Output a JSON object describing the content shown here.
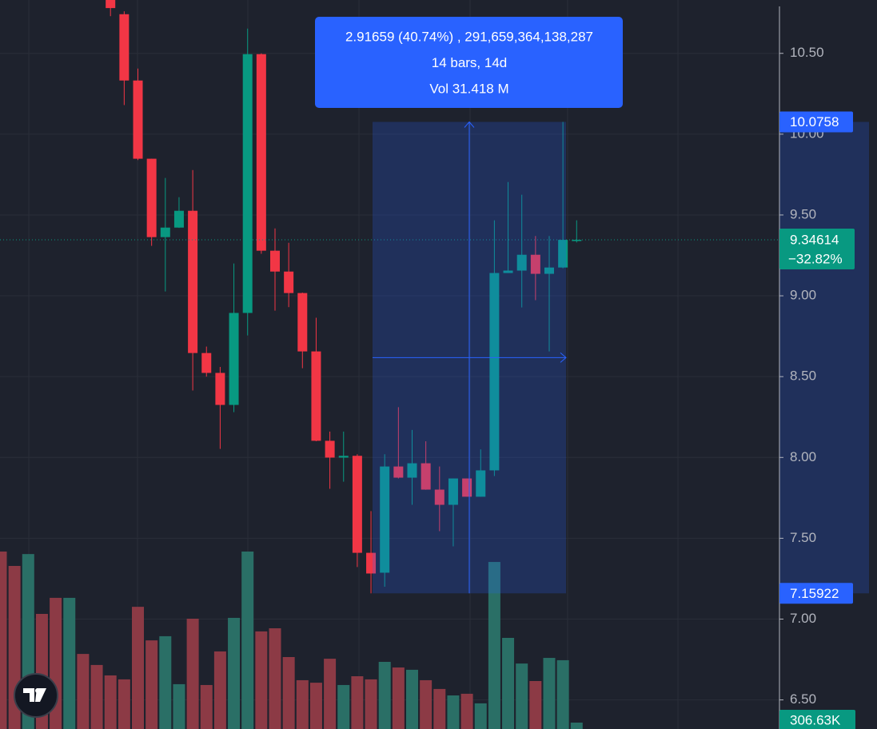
{
  "chart_data": {
    "type": "candlestick",
    "up_color": "#089981",
    "down_color": "#f23645",
    "open": [
      null,
      null,
      null,
      null,
      null,
      null,
      null,
      null,
      10.88,
      10.742,
      10.332,
      9.848,
      9.363,
      9.422,
      9.526,
      8.646,
      8.523,
      8.325,
      8.894,
      10.495,
      9.279,
      9.15,
      9.017,
      8.656,
      8.103,
      7.999,
      8.01,
      7.41,
      7.287,
      7.944,
      7.875,
      7.964,
      7.801,
      7.707,
      7.87,
      7.757,
      7.92,
      9.141,
      9.156,
      9.254,
      9.136,
      9.175,
      9.346
    ],
    "high": [
      null,
      null,
      null,
      null,
      null,
      null,
      null,
      null,
      10.9,
      10.76,
      10.406,
      9.848,
      9.729,
      9.61,
      9.778,
      8.686,
      8.56,
      9.2,
      10.653,
      10.5,
      9.417,
      9.328,
      9.02,
      8.864,
      8.16,
      8.16,
      8.02,
      7.668,
      8.02,
      8.311,
      8.17,
      8.1,
      7.944,
      7.87,
      7.87,
      8.05,
      9.467,
      9.704,
      9.625,
      9.37,
      9.37,
      10.0758,
      9.467
    ],
    "low": [
      null,
      null,
      null,
      null,
      null,
      null,
      null,
      null,
      10.73,
      10.18,
      9.84,
      9.309,
      9.027,
      9.42,
      8.414,
      8.5,
      8.053,
      8.28,
      8.755,
      9.26,
      8.908,
      8.93,
      8.552,
      8.1,
      7.806,
      7.85,
      7.322,
      7.15922,
      7.2,
      7.87,
      7.707,
      7.8,
      7.544,
      7.45,
      7.757,
      7.757,
      7.885,
      9.141,
      8.928,
      8.973,
      8.656,
      9.17,
      9.33
    ],
    "close": [
      null,
      null,
      null,
      null,
      null,
      null,
      null,
      null,
      10.78,
      10.332,
      9.848,
      9.363,
      9.422,
      9.526,
      8.646,
      8.523,
      8.325,
      8.894,
      10.495,
      9.279,
      9.15,
      9.017,
      8.656,
      8.103,
      7.999,
      8.01,
      7.41,
      7.282,
      7.944,
      7.875,
      7.964,
      7.801,
      7.707,
      7.87,
      7.757,
      7.92,
      9.141,
      9.156,
      9.254,
      9.136,
      9.175,
      9.346,
      9.34614
    ],
    "volume": {
      "values": [
        8510,
        7820,
        8390,
        5520,
        6290,
        6290,
        3600,
        3070,
        2570,
        2380,
        5860,
        4250,
        4450,
        2150,
        5290,
        2110,
        3720,
        5330,
        8510,
        4680,
        4830,
        3450,
        2340,
        2220,
        3370,
        2110,
        2530,
        2380,
        3220,
        2950,
        2840,
        2340,
        1920,
        1610,
        1690,
        1230,
        8010,
        4370,
        3140,
        2300,
        3410,
        3300,
        306.63
      ],
      "value_labels": [
        null,
        null,
        null,
        null,
        null,
        null,
        null,
        null,
        null,
        null,
        null,
        null,
        null,
        null,
        null,
        null,
        null,
        null,
        null,
        null,
        null,
        null,
        null,
        null,
        null,
        null,
        null,
        null,
        null,
        null,
        null,
        null,
        null,
        null,
        null,
        null,
        null,
        null,
        null,
        null,
        null,
        null,
        "306.63K"
      ],
      "colors": [
        "#8c3a45",
        "#8c3a45",
        "#2a6f66",
        "#8c3a45",
        "#8c3a45",
        "#2a6f66",
        "#8c3a45",
        "#8c3a45",
        "#8c3a45",
        "#8c3a45",
        "#8c3a45",
        "#8c3a45",
        "#2a6f66",
        "#2a6f66",
        "#8c3a45",
        "#8c3a45",
        "#8c3a45",
        "#2a6f66",
        "#2a6f66",
        "#8c3a45",
        "#8c3a45",
        "#8c3a45",
        "#8c3a45",
        "#8c3a45",
        "#8c3a45",
        "#2a6f66",
        "#8c3a45",
        "#8c3a45",
        "#2a6f66",
        "#8c3a45",
        "#2a6f66",
        "#8c3a45",
        "#8c3a45",
        "#2a6f66",
        "#8c3a45",
        "#2a6f66",
        "#2a6f66",
        "#2a6f66",
        "#2a6f66",
        "#8c3a45",
        "#2a6f66",
        "#2a6f66",
        "#2a6f66"
      ]
    },
    "ylim": [
      6.32,
      10.83
    ],
    "yticks": [
      {
        "value": 6.5,
        "label": "6.50"
      },
      {
        "value": 7,
        "label": "7.00"
      },
      {
        "value": 7.5,
        "label": "7.50"
      },
      {
        "value": 8,
        "label": "8.00"
      },
      {
        "value": 8.5,
        "label": "8.50"
      },
      {
        "value": 9,
        "label": "9.00"
      },
      {
        "value": 9.5,
        "label": "9.50"
      },
      {
        "value": 10,
        "label": "10.00"
      },
      {
        "value": 10.5,
        "label": "10.50"
      }
    ],
    "grid": true,
    "last_price": 9.34614,
    "last_change_label": "−32.82%",
    "measure": {
      "high": 10.0758,
      "low": 7.15922,
      "lines": [
        "2.91659 (40.74%) , 291,659,364,138,287",
        "14 bars, 14d",
        "Vol 31.418 M"
      ]
    }
  }
}
